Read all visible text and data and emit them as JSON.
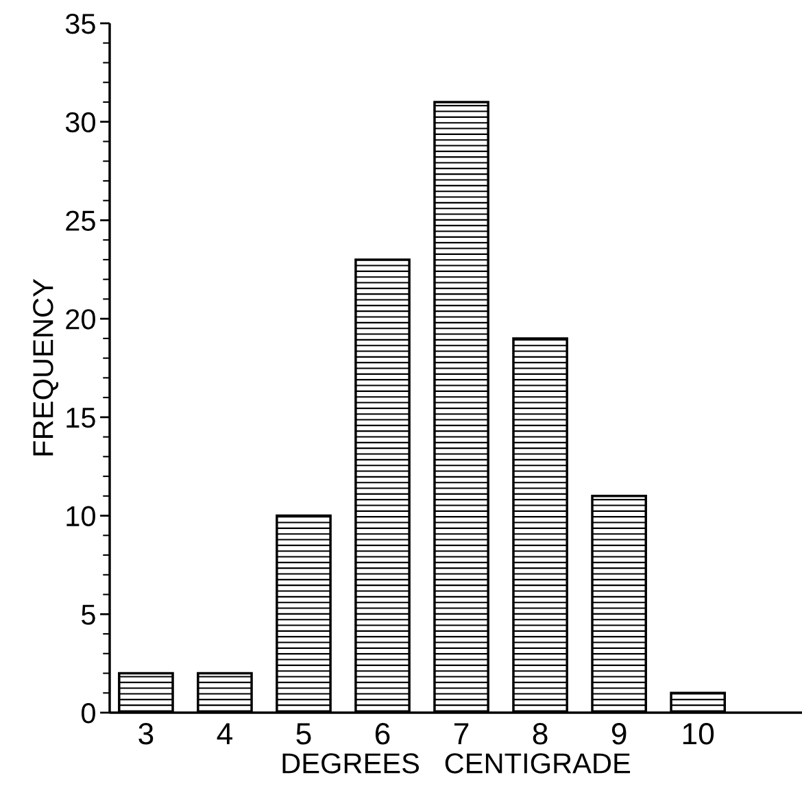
{
  "chart_data": {
    "type": "bar",
    "xlabel": "DEGREES   CENTIGRADE",
    "ylabel": "FREQUENCY",
    "categories": [
      "3",
      "4",
      "5",
      "6",
      "7",
      "8",
      "9",
      "10"
    ],
    "values": [
      2,
      2,
      10,
      23,
      31,
      19,
      11,
      1
    ],
    "color": "#000000",
    "ylim": [
      0,
      35
    ],
    "yticks": [
      0,
      5,
      10,
      15,
      20,
      25,
      30,
      35
    ],
    "grid": false
  }
}
